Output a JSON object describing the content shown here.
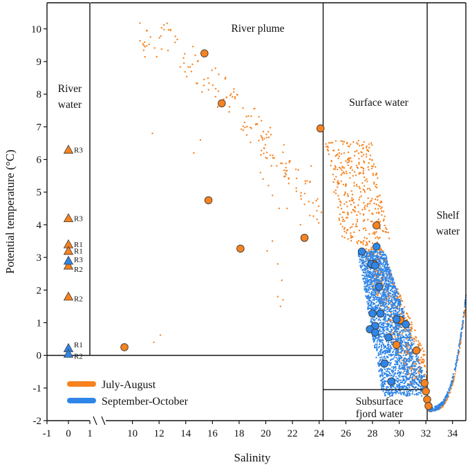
{
  "chart_data": {
    "type": "scatter",
    "xlabel": "Salinity",
    "ylabel": "Potential temperature (°C)",
    "left_panel": {
      "xlim": [
        -1,
        1
      ],
      "xticks": [
        -1,
        0,
        1
      ],
      "tick_labels": [
        "-1",
        "0",
        "1"
      ]
    },
    "main_panel": {
      "xlim": [
        8,
        35
      ],
      "xticks": [
        10,
        12,
        14,
        16,
        18,
        20,
        22,
        24,
        26,
        28,
        30,
        32,
        34
      ],
      "tick_labels": [
        "10",
        "12",
        "14",
        "16",
        "18",
        "20",
        "22",
        "24",
        "26",
        "28",
        "30",
        "32",
        "34"
      ]
    },
    "ylim": [
      -2,
      10.8
    ],
    "yticks": [
      -2,
      -1,
      0,
      1,
      2,
      3,
      4,
      5,
      6,
      7,
      8,
      9,
      10
    ],
    "ytick_labels": [
      "-2",
      "-1",
      "0",
      "1",
      "2",
      "3",
      "4",
      "5",
      "6",
      "7",
      "8",
      "9",
      "10"
    ],
    "colors": {
      "july_august": "#F7821E",
      "september_october": "#2F86E8",
      "marker_edge": "#3a3a3a"
    },
    "regions": [
      {
        "name": "river-water",
        "label_lines": [
          "River",
          "water"
        ],
        "x_range": [
          -1,
          1
        ],
        "y_range": [
          0,
          10.8
        ]
      },
      {
        "name": "river-plume",
        "label_lines": [
          "River plume"
        ],
        "x_range": [
          8,
          24.3
        ],
        "y_range": [
          0,
          10.8
        ]
      },
      {
        "name": "surface-water",
        "label_lines": [
          "Surface water"
        ],
        "x_range": [
          24.3,
          32.1
        ],
        "y_range": [
          -1.05,
          10.8
        ]
      },
      {
        "name": "subsurface-fjord-water",
        "label_lines": [
          "Subsurface",
          "fjord water"
        ],
        "x_range": [
          24.3,
          32.1
        ],
        "y_range": [
          -2,
          -1.05
        ]
      },
      {
        "name": "shelf-water",
        "label_lines": [
          "Shelf",
          "water"
        ],
        "x_range": [
          32.1,
          35
        ],
        "y_range": [
          -2,
          10.8
        ]
      }
    ],
    "series": [
      {
        "name": "July-August",
        "color": "#F7821E",
        "river_stations": [
          {
            "label": "R3",
            "x": 0,
            "y": 6.3
          },
          {
            "label": "R3",
            "x": 0,
            "y": 4.2
          },
          {
            "label": "R1",
            "x": 0,
            "y": 3.4
          },
          {
            "label": "R1",
            "x": 0,
            "y": 3.2
          },
          {
            "label": "R2",
            "x": 0,
            "y": 2.75
          },
          {
            "label": "R2",
            "x": 0,
            "y": 1.8
          }
        ],
        "bottle_samples": [
          {
            "x": 15.4,
            "y": 9.25
          },
          {
            "x": 16.7,
            "y": 7.72
          },
          {
            "x": 24.1,
            "y": 6.95
          },
          {
            "x": 15.7,
            "y": 4.75
          },
          {
            "x": 18.1,
            "y": 3.27
          },
          {
            "x": 22.9,
            "y": 3.6
          },
          {
            "x": 9.4,
            "y": 0.25
          },
          {
            "x": 28.3,
            "y": 3.98
          },
          {
            "x": 28.1,
            "y": 2.8
          },
          {
            "x": 30.1,
            "y": 1.08
          },
          {
            "x": 29.8,
            "y": 0.32
          },
          {
            "x": 31.3,
            "y": 0.15
          },
          {
            "x": 31.9,
            "y": -0.85
          },
          {
            "x": 32.0,
            "y": -1.1
          },
          {
            "x": 32.1,
            "y": -1.35
          },
          {
            "x": 32.2,
            "y": -1.55
          }
        ],
        "ctd_profiles_summary": "dense scatter: plume 10.5-24 salinity, 9.9 to 1.5 °C; surface water 24.3-32 salinity, 6.5 to -1 °C"
      },
      {
        "name": "September-October",
        "color": "#2F86E8",
        "river_stations": [
          {
            "label": "R3",
            "x": 0,
            "y": 2.9
          },
          {
            "label": "R1",
            "x": 0,
            "y": 0.22
          },
          {
            "label": "R2",
            "x": 0,
            "y": 0.05
          }
        ],
        "bottle_samples": [
          {
            "x": 27.2,
            "y": 3.18
          },
          {
            "x": 28.3,
            "y": 3.33
          },
          {
            "x": 27.9,
            "y": 2.8
          },
          {
            "x": 28.2,
            "y": 2.75
          },
          {
            "x": 28.5,
            "y": 2.1
          },
          {
            "x": 28.0,
            "y": 1.28
          },
          {
            "x": 28.6,
            "y": 1.28
          },
          {
            "x": 28.2,
            "y": 0.9
          },
          {
            "x": 27.8,
            "y": 0.8
          },
          {
            "x": 28.2,
            "y": 0.7
          },
          {
            "x": 29.8,
            "y": 1.1
          },
          {
            "x": 29.2,
            "y": 0.55
          },
          {
            "x": 28.9,
            "y": -0.25
          },
          {
            "x": 29.4,
            "y": -0.8
          },
          {
            "x": 30.5,
            "y": 0.95
          }
        ],
        "ctd_profiles_summary": "dense scatter: 26.7-32 salinity, 3.3 to -1.2 °C; shelf water line 32.2-35, -1.7 to 1.75 °C"
      }
    ],
    "legend": {
      "position": "bottom-left",
      "entries": [
        "July-August",
        "September-October"
      ]
    }
  }
}
